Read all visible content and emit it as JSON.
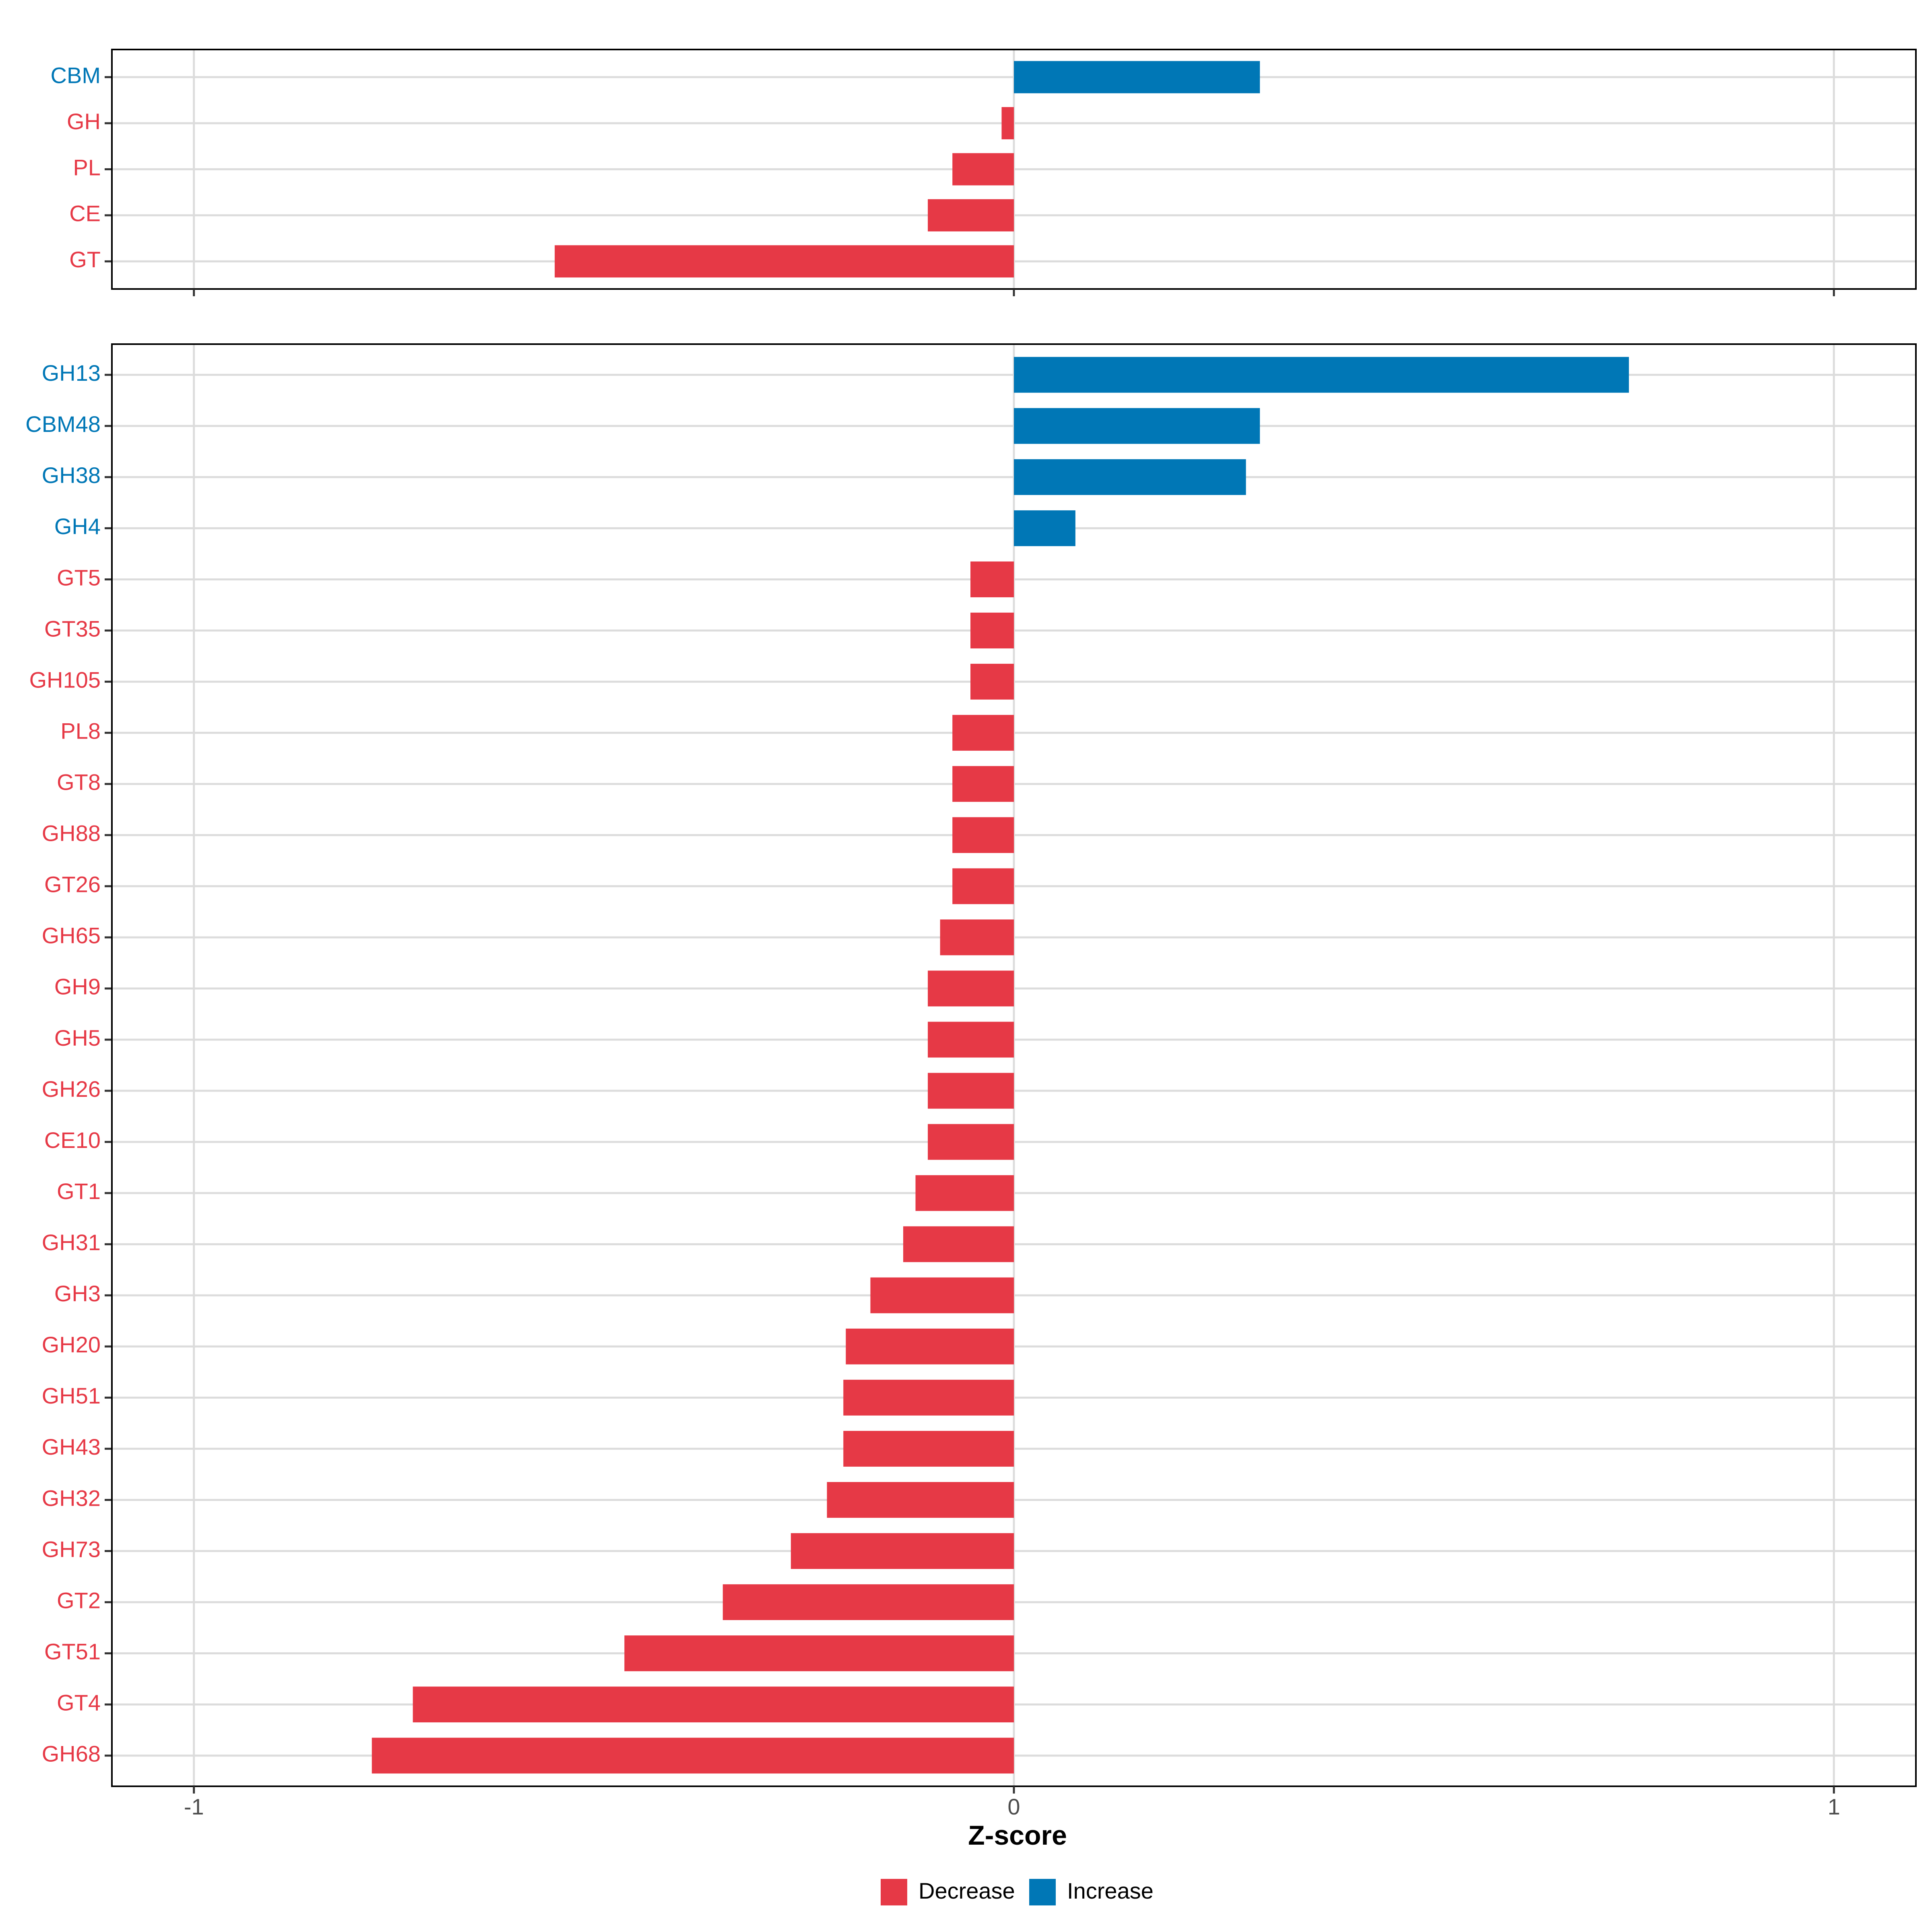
{
  "chart_data": [
    {
      "type": "bar",
      "orientation": "horizontal",
      "panel": "top",
      "categories": [
        "CBM",
        "GH",
        "PL",
        "CE",
        "GT"
      ],
      "values": [
        0.3,
        -0.015,
        -0.075,
        -0.105,
        -0.56
      ],
      "xlim": [
        -1.1,
        1.1
      ],
      "xticks": [
        -1,
        0,
        1
      ]
    },
    {
      "type": "bar",
      "orientation": "horizontal",
      "panel": "bottom",
      "categories": [
        "GH13",
        "CBM48",
        "GH38",
        "GH4",
        "GT5",
        "GT35",
        "GH105",
        "PL8",
        "GT8",
        "GH88",
        "GT26",
        "GH65",
        "GH9",
        "GH5",
        "GH26",
        "CE10",
        "GT1",
        "GH31",
        "GH3",
        "GH20",
        "GH51",
        "GH43",
        "GH32",
        "GH73",
        "GT2",
        "GT51",
        "GT4",
        "GH68"
      ],
      "values": [
        0.75,
        0.3,
        0.283,
        0.075,
        -0.053,
        -0.053,
        -0.053,
        -0.075,
        -0.075,
        -0.075,
        -0.075,
        -0.09,
        -0.105,
        -0.105,
        -0.105,
        -0.105,
        -0.12,
        -0.135,
        -0.175,
        -0.205,
        -0.208,
        -0.208,
        -0.228,
        -0.272,
        -0.355,
        -0.475,
        -0.733,
        -0.783
      ],
      "xlim": [
        -1.1,
        1.1
      ],
      "xticks": [
        -1,
        0,
        1
      ],
      "xticklabels": [
        "-1",
        "0",
        "1"
      ],
      "xlabel": "Z-score"
    }
  ],
  "legend": {
    "decrease_label": "Decrease",
    "increase_label": "Increase",
    "decrease_color": "#E63946",
    "increase_color": "#0077B6"
  }
}
